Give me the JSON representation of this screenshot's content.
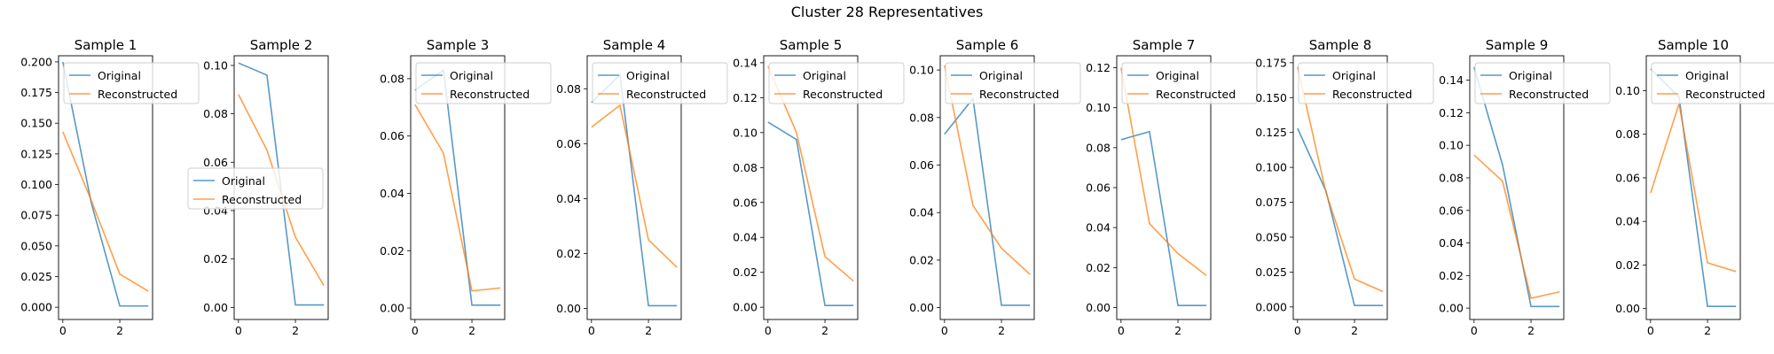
{
  "figure": {
    "title": "Cluster 28 Representatives"
  },
  "legend_labels": [
    "Original",
    "Reconstructed"
  ],
  "colors": {
    "original": "#1f77b4",
    "reconstructed": "#ff7f0e"
  },
  "chart_data": [
    {
      "type": "line",
      "title": "Sample 1",
      "legend_position": "upper-right",
      "x": [
        0,
        1,
        2,
        3
      ],
      "xticks": [
        0,
        2
      ],
      "ylim": [
        -0.01,
        0.205
      ],
      "yticks": [
        "0.000",
        "0.025",
        "0.050",
        "0.075",
        "0.100",
        "0.125",
        "0.150",
        "0.175",
        "0.200"
      ],
      "series": [
        {
          "name": "Original",
          "values": [
            0.2,
            0.085,
            0.001,
            0.001
          ]
        },
        {
          "name": "Reconstructed",
          "values": [
            0.143,
            0.087,
            0.027,
            0.013
          ]
        }
      ]
    },
    {
      "type": "line",
      "title": "Sample 2",
      "legend_position": "center-left",
      "x": [
        0,
        1,
        2,
        3
      ],
      "xticks": [
        0,
        2
      ],
      "ylim": [
        -0.005,
        0.104
      ],
      "yticks": [
        "0.00",
        "0.02",
        "0.04",
        "0.06",
        "0.08",
        "0.10"
      ],
      "series": [
        {
          "name": "Original",
          "values": [
            0.101,
            0.096,
            0.001,
            0.001
          ]
        },
        {
          "name": "Reconstructed",
          "values": [
            0.088,
            0.065,
            0.029,
            0.009
          ]
        }
      ]
    },
    {
      "type": "line",
      "title": "Sample 3",
      "legend_position": "upper-right",
      "x": [
        0,
        1,
        2,
        3
      ],
      "xticks": [
        0,
        2
      ],
      "ylim": [
        -0.004,
        0.088
      ],
      "yticks": [
        "0.00",
        "0.02",
        "0.04",
        "0.06",
        "0.08"
      ],
      "series": [
        {
          "name": "Original",
          "values": [
            0.076,
            0.083,
            0.001,
            0.001
          ]
        },
        {
          "name": "Reconstructed",
          "values": [
            0.071,
            0.054,
            0.006,
            0.007
          ]
        }
      ]
    },
    {
      "type": "line",
      "title": "Sample 4",
      "legend_position": "upper-right",
      "x": [
        0,
        1,
        2,
        3
      ],
      "xticks": [
        0,
        2
      ],
      "ylim": [
        -0.004,
        0.092
      ],
      "yticks": [
        "0.00",
        "0.02",
        "0.04",
        "0.06",
        "0.08"
      ],
      "series": [
        {
          "name": "Original",
          "values": [
            0.075,
            0.085,
            0.001,
            0.001
          ]
        },
        {
          "name": "Reconstructed",
          "values": [
            0.066,
            0.074,
            0.025,
            0.015
          ]
        }
      ]
    },
    {
      "type": "line",
      "title": "Sample 5",
      "legend_position": "upper-right",
      "x": [
        0,
        1,
        2,
        3
      ],
      "xticks": [
        0,
        2
      ],
      "ylim": [
        -0.007,
        0.144
      ],
      "yticks": [
        "0.00",
        "0.02",
        "0.04",
        "0.06",
        "0.08",
        "0.10",
        "0.12",
        "0.14"
      ],
      "series": [
        {
          "name": "Original",
          "values": [
            0.106,
            0.096,
            0.001,
            0.001
          ]
        },
        {
          "name": "Reconstructed",
          "values": [
            0.138,
            0.1,
            0.029,
            0.015
          ]
        }
      ]
    },
    {
      "type": "line",
      "title": "Sample 6",
      "legend_position": "upper-right",
      "x": [
        0,
        1,
        2,
        3
      ],
      "xticks": [
        0,
        2
      ],
      "ylim": [
        -0.005,
        0.106
      ],
      "yticks": [
        "0.00",
        "0.02",
        "0.04",
        "0.06",
        "0.08",
        "0.10"
      ],
      "series": [
        {
          "name": "Original",
          "values": [
            0.073,
            0.088,
            0.001,
            0.001
          ]
        },
        {
          "name": "Reconstructed",
          "values": [
            0.102,
            0.043,
            0.025,
            0.014
          ]
        }
      ]
    },
    {
      "type": "line",
      "title": "Sample 7",
      "legend_position": "upper-right",
      "x": [
        0,
        1,
        2,
        3
      ],
      "xticks": [
        0,
        2
      ],
      "ylim": [
        -0.006,
        0.126
      ],
      "yticks": [
        "0.00",
        "0.02",
        "0.04",
        "0.06",
        "0.08",
        "0.10",
        "0.12"
      ],
      "series": [
        {
          "name": "Original",
          "values": [
            0.084,
            0.088,
            0.001,
            0.001
          ]
        },
        {
          "name": "Reconstructed",
          "values": [
            0.12,
            0.042,
            0.027,
            0.016
          ]
        }
      ]
    },
    {
      "type": "line",
      "title": "Sample 8",
      "legend_position": "upper-right",
      "x": [
        0,
        1,
        2,
        3
      ],
      "xticks": [
        0,
        2
      ],
      "ylim": [
        -0.009,
        0.18
      ],
      "yticks": [
        "0.000",
        "0.025",
        "0.050",
        "0.075",
        "0.100",
        "0.125",
        "0.150",
        "0.175"
      ],
      "series": [
        {
          "name": "Original",
          "values": [
            0.128,
            0.083,
            0.001,
            0.001
          ]
        },
        {
          "name": "Reconstructed",
          "values": [
            0.172,
            0.082,
            0.02,
            0.011
          ]
        }
      ]
    },
    {
      "type": "line",
      "title": "Sample 9",
      "legend_position": "upper-right",
      "x": [
        0,
        1,
        2,
        3
      ],
      "xticks": [
        0,
        2
      ],
      "ylim": [
        -0.007,
        0.155
      ],
      "yticks": [
        "0.00",
        "0.02",
        "0.04",
        "0.06",
        "0.08",
        "0.10",
        "0.12",
        "0.14"
      ],
      "series": [
        {
          "name": "Original",
          "values": [
            0.148,
            0.088,
            0.001,
            0.001
          ]
        },
        {
          "name": "Reconstructed",
          "values": [
            0.094,
            0.078,
            0.006,
            0.01
          ]
        }
      ]
    },
    {
      "type": "line",
      "title": "Sample 10",
      "legend_position": "upper-right",
      "x": [
        0,
        1,
        2,
        3
      ],
      "xticks": [
        0,
        2
      ],
      "ylim": [
        -0.005,
        0.116
      ],
      "yticks": [
        "0.00",
        "0.02",
        "0.04",
        "0.06",
        "0.08",
        "0.10"
      ],
      "series": [
        {
          "name": "Original",
          "values": [
            0.11,
            0.097,
            0.001,
            0.001
          ]
        },
        {
          "name": "Reconstructed",
          "values": [
            0.053,
            0.094,
            0.021,
            0.017
          ]
        }
      ]
    }
  ]
}
